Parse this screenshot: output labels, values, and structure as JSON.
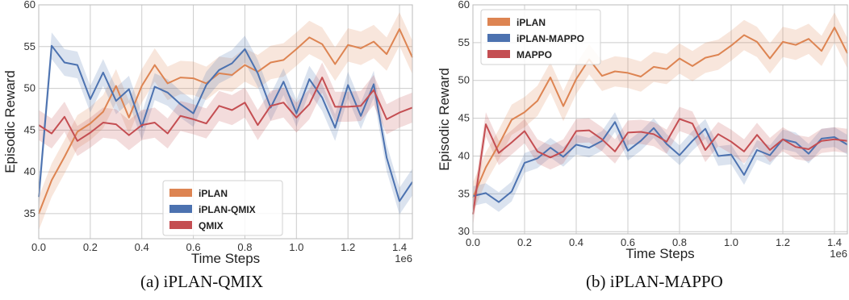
{
  "colors": {
    "iplan": "#dd8452",
    "variant": "#4c72b0",
    "baseline": "#c44e52",
    "grid": "#cccccc",
    "axes_bg": "#ffffff"
  },
  "chart_data": [
    {
      "type": "line",
      "caption": "(a) iPLAN-QMIX",
      "xlabel": "Time Steps",
      "ylabel": "Episodic Reward",
      "x_offset_label": "1e6",
      "xlim": [
        0,
        1.45
      ],
      "ylim": [
        32,
        60
      ],
      "xticks": [
        "0.0",
        "0.2",
        "0.4",
        "0.6",
        "0.8",
        "1.0",
        "1.2",
        "1.4"
      ],
      "yticks": [
        "35",
        "40",
        "45",
        "50",
        "55",
        "60"
      ],
      "grid": true,
      "legend_position": "lower-center",
      "series": [
        {
          "name": "iPLAN",
          "color_key": "iplan",
          "band": 2.0,
          "x": [
            0,
            0.05,
            0.1,
            0.15,
            0.2,
            0.25,
            0.3,
            0.35,
            0.4,
            0.45,
            0.5,
            0.55,
            0.6,
            0.65,
            0.7,
            0.75,
            0.8,
            0.85,
            0.9,
            0.95,
            1.0,
            1.05,
            1.1,
            1.15,
            1.2,
            1.25,
            1.3,
            1.35,
            1.4,
            1.45
          ],
          "y": [
            35.0,
            39.0,
            41.8,
            44.8,
            45.8,
            47.2,
            50.3,
            46.5,
            50.3,
            52.8,
            50.6,
            51.3,
            51.2,
            50.6,
            51.8,
            51.6,
            52.8,
            52.0,
            53.1,
            53.4,
            54.7,
            56.1,
            55.3,
            52.9,
            55.2,
            54.8,
            55.6,
            54.1,
            57.1,
            53.7
          ]
        },
        {
          "name": "iPLAN-QMIX",
          "color_key": "variant",
          "band": 1.6,
          "x": [
            0,
            0.05,
            0.1,
            0.15,
            0.2,
            0.25,
            0.3,
            0.35,
            0.4,
            0.45,
            0.5,
            0.55,
            0.6,
            0.65,
            0.7,
            0.75,
            0.8,
            0.85,
            0.9,
            0.95,
            1.0,
            1.05,
            1.1,
            1.15,
            1.2,
            1.25,
            1.3,
            1.35,
            1.4,
            1.45
          ],
          "y": [
            37.0,
            55.1,
            53.1,
            52.8,
            48.7,
            51.9,
            48.5,
            49.9,
            45.4,
            50.2,
            49.5,
            48.1,
            47.0,
            50.4,
            52.2,
            53.0,
            54.7,
            51.8,
            47.7,
            50.8,
            47.0,
            51.1,
            48.9,
            45.3,
            50.4,
            46.7,
            50.5,
            41.7,
            36.5,
            38.8
          ]
        },
        {
          "name": "QMIX",
          "color_key": "baseline",
          "band": 1.8,
          "x": [
            0,
            0.05,
            0.1,
            0.15,
            0.2,
            0.25,
            0.3,
            0.35,
            0.4,
            0.45,
            0.5,
            0.55,
            0.6,
            0.65,
            0.7,
            0.75,
            0.8,
            0.85,
            0.9,
            0.95,
            1.0,
            1.05,
            1.1,
            1.15,
            1.2,
            1.25,
            1.3,
            1.35,
            1.4,
            1.45
          ],
          "y": [
            45.6,
            44.6,
            46.6,
            43.7,
            44.7,
            45.9,
            45.7,
            44.4,
            45.6,
            45.9,
            44.6,
            46.7,
            46.3,
            45.8,
            47.9,
            47.4,
            48.3,
            45.6,
            47.9,
            48.3,
            46.5,
            48.1,
            51.3,
            47.8,
            47.8,
            47.9,
            49.8,
            46.3,
            47.1,
            47.7
          ]
        }
      ]
    },
    {
      "type": "line",
      "caption": "(b) iPLAN-MAPPO",
      "xlabel": "Time Steps",
      "ylabel": "Episodic Reward",
      "x_offset_label": "1e6",
      "xlim": [
        0,
        1.45
      ],
      "ylim": [
        29.7,
        60
      ],
      "xticks": [
        "0.0",
        "0.2",
        "0.4",
        "0.6",
        "0.8",
        "1.0",
        "1.2",
        "1.4"
      ],
      "yticks": [
        "30",
        "35",
        "40",
        "45",
        "50",
        "55",
        "60"
      ],
      "grid": true,
      "legend_position": "upper-left",
      "series": [
        {
          "name": "iPLAN",
          "color_key": "iplan",
          "band": 2.0,
          "x": [
            0,
            0.05,
            0.1,
            0.15,
            0.2,
            0.25,
            0.3,
            0.35,
            0.4,
            0.45,
            0.5,
            0.55,
            0.6,
            0.65,
            0.7,
            0.75,
            0.8,
            0.85,
            0.9,
            0.95,
            1.0,
            1.05,
            1.1,
            1.15,
            1.2,
            1.25,
            1.3,
            1.35,
            1.4,
            1.45
          ],
          "y": [
            34.5,
            38.5,
            41.5,
            44.8,
            45.8,
            47.3,
            50.4,
            46.6,
            50.2,
            52.8,
            50.6,
            51.2,
            51.0,
            50.5,
            51.8,
            51.5,
            52.9,
            51.9,
            53.0,
            53.4,
            54.6,
            56.0,
            55.1,
            52.9,
            55.1,
            54.7,
            55.5,
            53.9,
            57.0,
            53.6
          ]
        },
        {
          "name": "iPLAN-MAPPO",
          "color_key": "variant",
          "band": 1.3,
          "x": [
            0,
            0.05,
            0.1,
            0.15,
            0.2,
            0.25,
            0.3,
            0.35,
            0.4,
            0.45,
            0.5,
            0.55,
            0.6,
            0.65,
            0.7,
            0.75,
            0.8,
            0.85,
            0.9,
            0.95,
            1.0,
            1.05,
            1.1,
            1.15,
            1.2,
            1.25,
            1.3,
            1.35,
            1.4,
            1.45
          ],
          "y": [
            34.7,
            35.1,
            33.9,
            35.3,
            39.1,
            39.7,
            41.1,
            39.9,
            41.5,
            41.1,
            42.0,
            44.5,
            40.7,
            42.0,
            43.7,
            41.6,
            40.1,
            42.0,
            43.6,
            40.0,
            40.2,
            37.5,
            40.8,
            40.1,
            42.2,
            41.8,
            40.3,
            42.3,
            42.5,
            41.5
          ]
        },
        {
          "name": "MAPPO",
          "color_key": "baseline",
          "band": 1.6,
          "x": [
            0,
            0.05,
            0.1,
            0.15,
            0.2,
            0.25,
            0.3,
            0.35,
            0.4,
            0.45,
            0.5,
            0.55,
            0.6,
            0.65,
            0.7,
            0.75,
            0.8,
            0.85,
            0.9,
            0.95,
            1.0,
            1.05,
            1.1,
            1.15,
            1.2,
            1.25,
            1.3,
            1.35,
            1.4,
            1.45
          ],
          "y": [
            32.3,
            44.2,
            40.4,
            41.8,
            43.3,
            40.6,
            39.8,
            40.6,
            43.3,
            43.4,
            42.2,
            40.6,
            43.1,
            43.2,
            42.9,
            41.9,
            44.9,
            44.3,
            40.8,
            42.9,
            41.9,
            40.6,
            42.8,
            40.8,
            42.2,
            41.2,
            40.9,
            42.0,
            42.2,
            42.0
          ]
        }
      ]
    }
  ]
}
